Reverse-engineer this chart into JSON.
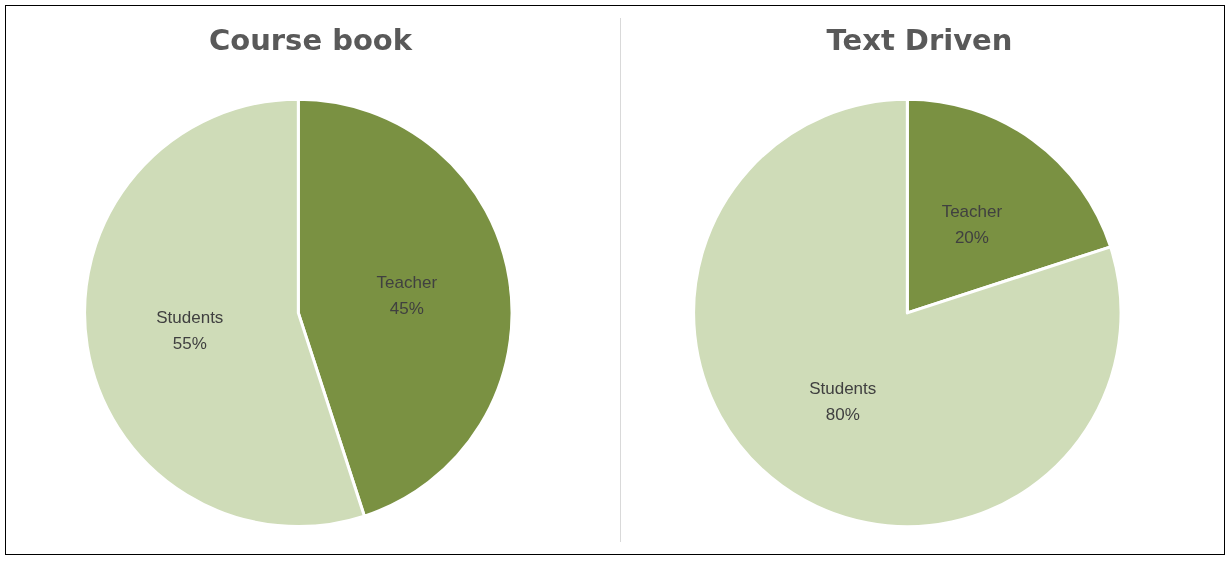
{
  "chart_data": [
    {
      "type": "pie",
      "title": "Course book",
      "categories": [
        "Teacher",
        "Students"
      ],
      "values": [
        45,
        55
      ],
      "colors": [
        "#7a9142",
        "#cfdcb8"
      ],
      "value_labels": [
        "45%",
        "55%"
      ]
    },
    {
      "type": "pie",
      "title": "Text Driven",
      "categories": [
        "Teacher",
        "Students"
      ],
      "values": [
        20,
        80
      ],
      "colors": [
        "#7a9142",
        "#cfdcb8"
      ],
      "value_labels": [
        "20%",
        "80%"
      ]
    }
  ]
}
